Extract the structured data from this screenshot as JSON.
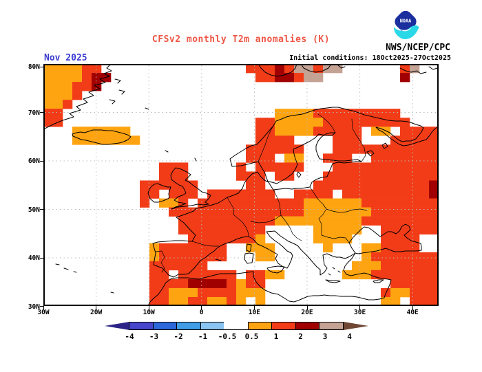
{
  "header": {
    "title": "CFSv2 monthly T2m anomalies (K)",
    "title_color": "#ee5544",
    "agency": "NWS/NCEP/CPC",
    "date_label": "Nov 2025",
    "date_color": "#3b3bd0",
    "init_conditions": "Initial conditions: 18Oct2025-27Oct2025",
    "logo_text": "NOAA",
    "logo_colors": {
      "shield": "#1c2f9e",
      "swoosh": "#2bd8e8",
      "text": "#ffffff"
    }
  },
  "chart_data": {
    "type": "heatmap",
    "title": "CFSv2 monthly T2m anomalies (K)",
    "units": "K",
    "forecast_month": "Nov 2025",
    "initial_conditions": "18Oct2025-27Oct2025",
    "x_ticks": [
      "30W",
      "20W",
      "10W",
      "0",
      "10E",
      "20E",
      "30E",
      "40E"
    ],
    "y_ticks": [
      "80N",
      "70N",
      "60N",
      "50N",
      "40N",
      "30N"
    ],
    "lon_range": [
      -30,
      45
    ],
    "lat_range": [
      30,
      80
    ],
    "grid": "dotted",
    "gridline_color": "#bbbbbb",
    "colorbar": {
      "boundaries": [
        "-4",
        "-3",
        "-2",
        "-1",
        "-0.5",
        "0.5",
        "1",
        "2",
        "3",
        "4"
      ],
      "segment_colors": [
        "#4645cb",
        "#2d68da",
        "#419de6",
        "#8ac4f2",
        "#ffffff",
        "#ffa411",
        "#f23c18",
        "#a10000",
        "#c4a294"
      ],
      "left_arrow_color": "#2c2386",
      "right_arrow_color": "#6f4734"
    },
    "palette": {
      ".": null,
      "o": "#ffa411",
      "r": "#f23c18",
      "d": "#a10000",
      "t": "#c4a294"
    },
    "palette_values": {
      ".": "-0.5 to +0.5",
      "o": "+0.5 to +1",
      "r": "+1 to +2",
      "d": "+2 to +3",
      "t": "+3 to +4"
    },
    "grid_cells": {
      "cols": 41,
      "rows": 27
    },
    "anomaly_grid": [
      "oooorr...............rrrdrttrtt......rt..",
      "oooordd...............rrddrtt........d...",
      "ooorrd...................................",
      "ooor.....................................",
      "oor......................................",
      "rr......................oooorrrrrrrrr....",
      "rr....................rrooooorrrrrrrrr...",
      "...oooooo.............rroooorrrrr.oo.rrrr",
      "...ooooooo............rrrr....rrr...rrrrr",
      ".....................rrrrrr...rrrrrrrrrrr",
      ".....................rrr.oo..rrr..rrrrrrr",
      "............rrr.....r.rrrrr...rrrrrrrrrrr",
      "............rrr.....rrr.rr...rrrrrrrrrrrr",
      "..........rrrrrr.....rr.....rrrrrrrrrrrrd",
      "..........rr.rrr.rrrrrrr..rrrr.rrrrrrrrrd",
      "..........r.oor.rrrrrrrrrrroooooorrrrrrrr",
      ".............rrrrrrrrrrrrrrooooooorrrrrrr",
      "..............rrrrrrrrrrooooooooorrrrrrrr",
      "..............rrrrrrrrr.....ooooo..rrrrrr",
      "...............rrrrrrro.....oooo...rrrr..",
      "...........orrrrrrr..ooo.....o...oorrrr..",
      "...........orrrrrrr...oo.........orrrrrrr",
      "...........rrrrrr...............ooorrrrrr",
      "...........rr.rrrrrr.rroo......ooorrrrrrr",
      "...........rrrrddddrorr.............rrrrr",
      "...........rrooorrrrooo............roorrr",
      "...........rroorrooro.o............oo.rrr"
    ]
  }
}
